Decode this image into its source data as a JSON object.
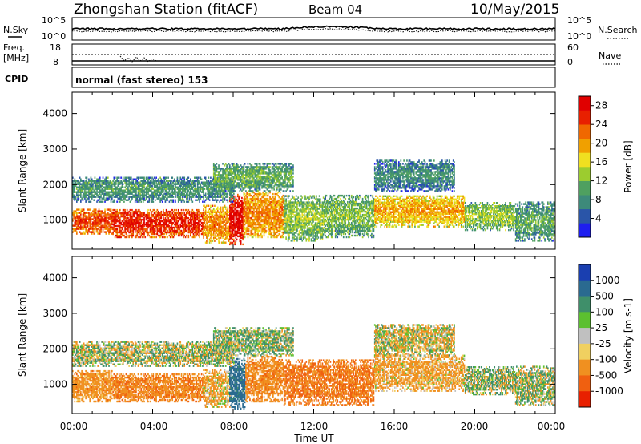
{
  "header": {
    "title": "Zhongshan Station (fitACF)",
    "beam": "Beam 04",
    "date": "10/May/2015"
  },
  "summary_panels": {
    "nsky_label": "N.Sky",
    "nsearch_label": "N.Search",
    "nsky_ticks": [
      "10^5",
      "10^0"
    ],
    "nsearch_ticks": [
      "10^5",
      "10^0"
    ],
    "freq_label_line1": "Freq.",
    "freq_label_line2": "[MHz]",
    "freq_ticks": [
      "18",
      "8"
    ],
    "nave_label": "Nave",
    "nave_ticks": [
      "60",
      "0"
    ],
    "cpid_label": "CPID",
    "cpid_text": "normal (fast stereo) 153"
  },
  "axes": {
    "ylabel": "Slant Range [km]",
    "xlabel": "Time UT",
    "yticks": [
      "1000",
      "2000",
      "3000",
      "4000"
    ],
    "xticks": [
      "00:00",
      "04:00",
      "08:00",
      "12:00",
      "16:00",
      "20:00",
      "00:00"
    ]
  },
  "colorbars": {
    "power": {
      "label": "Power [dB]",
      "ticks": [
        "4",
        "8",
        "12",
        "16",
        "20",
        "24",
        "28"
      ],
      "colors": [
        "#1e1ef0",
        "#2a55a8",
        "#3d8a7a",
        "#4fa060",
        "#9ccc2f",
        "#f0e020",
        "#f0a000",
        "#f06800",
        "#e82000",
        "#e00000"
      ]
    },
    "velocity": {
      "label": "Velocity [m s-1]",
      "ticks": [
        "1000",
        "500",
        "100",
        "25",
        "-25",
        "-100",
        "-500",
        "-1000"
      ],
      "colors": [
        "#1a3fb0",
        "#2a6a90",
        "#3f8f6a",
        "#5cc030",
        "#c0c0c0",
        "#f0d060",
        "#f09020",
        "#f06010",
        "#e82000"
      ]
    }
  },
  "chart_data": [
    {
      "type": "heatmap",
      "panel": "power",
      "xlabel": "Time UT",
      "ylabel": "Slant Range [km]",
      "x_range_hours": [
        0,
        24
      ],
      "ylim_km": [
        180,
        4600
      ],
      "colorbar": "Power [dB]",
      "colorbar_range": [
        0,
        30
      ],
      "regions": [
        {
          "t_start": 0.0,
          "t_end": 2.0,
          "r_min": 600,
          "r_max": 1300,
          "level": 25
        },
        {
          "t_start": 2.0,
          "t_end": 6.5,
          "r_min": 500,
          "r_max": 1300,
          "level": 27
        },
        {
          "t_start": 6.5,
          "t_end": 7.8,
          "r_min": 350,
          "r_max": 1400,
          "level": 22
        },
        {
          "t_start": 7.8,
          "t_end": 8.5,
          "r_min": 300,
          "r_max": 1700,
          "level": 29
        },
        {
          "t_start": 8.5,
          "t_end": 10.5,
          "r_min": 500,
          "r_max": 1800,
          "level": 22
        },
        {
          "t_start": 10.5,
          "t_end": 12.5,
          "r_min": 400,
          "r_max": 1700,
          "level": 14
        },
        {
          "t_start": 12.5,
          "t_end": 15.0,
          "r_min": 500,
          "r_max": 1700,
          "level": 13
        },
        {
          "t_start": 15.0,
          "t_end": 19.5,
          "r_min": 800,
          "r_max": 1700,
          "level": 20
        },
        {
          "t_start": 19.5,
          "t_end": 22.0,
          "r_min": 700,
          "r_max": 1500,
          "level": 14
        },
        {
          "t_start": 22.0,
          "t_end": 24.0,
          "r_min": 400,
          "r_max": 1500,
          "level": 11
        },
        {
          "t_start": 0.0,
          "t_end": 8.0,
          "r_min": 1500,
          "r_max": 2200,
          "level": 10
        },
        {
          "t_start": 7.0,
          "t_end": 11.0,
          "r_min": 1800,
          "r_max": 2600,
          "level": 12
        },
        {
          "t_start": 15.0,
          "t_end": 19.0,
          "r_min": 1800,
          "r_max": 2700,
          "level": 9
        }
      ]
    },
    {
      "type": "heatmap",
      "panel": "velocity",
      "xlabel": "Time UT",
      "ylabel": "Slant Range [km]",
      "x_range_hours": [
        0,
        24
      ],
      "ylim_km": [
        180,
        4600
      ],
      "colorbar": "Velocity [m s-1]",
      "colorbar_range": [
        -1000,
        1000
      ],
      "regions": [
        {
          "t_start": 0.0,
          "t_end": 2.0,
          "r_min": 500,
          "r_max": 1400,
          "level": -300
        },
        {
          "t_start": 2.0,
          "t_end": 6.5,
          "r_min": 500,
          "r_max": 1300,
          "level": -400
        },
        {
          "t_start": 6.5,
          "t_end": 7.8,
          "r_min": 350,
          "r_max": 1400,
          "level": -150
        },
        {
          "t_start": 7.8,
          "t_end": 8.6,
          "r_min": 300,
          "r_max": 1700,
          "level": 700
        },
        {
          "t_start": 8.6,
          "t_end": 10.5,
          "r_min": 500,
          "r_max": 1800,
          "level": -350
        },
        {
          "t_start": 10.5,
          "t_end": 15.0,
          "r_min": 400,
          "r_max": 1700,
          "level": -500
        },
        {
          "t_start": 15.0,
          "t_end": 19.5,
          "r_min": 800,
          "r_max": 1800,
          "level": -200
        },
        {
          "t_start": 19.5,
          "t_end": 22.0,
          "r_min": 700,
          "r_max": 1500,
          "level": 60
        },
        {
          "t_start": 22.0,
          "t_end": 24.0,
          "r_min": 400,
          "r_max": 1500,
          "level": 40
        },
        {
          "t_start": 0.0,
          "t_end": 8.0,
          "r_min": 1500,
          "r_max": 2200,
          "level": 10
        },
        {
          "t_start": 7.0,
          "t_end": 11.0,
          "r_min": 1800,
          "r_max": 2600,
          "level": 80
        },
        {
          "t_start": 15.0,
          "t_end": 19.0,
          "r_min": 1800,
          "r_max": 2700,
          "level": -60
        }
      ]
    }
  ]
}
